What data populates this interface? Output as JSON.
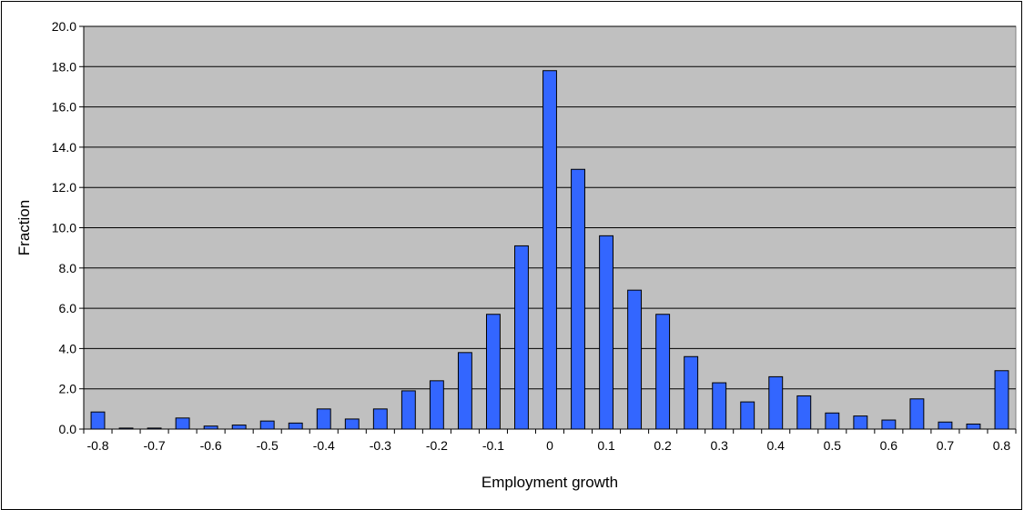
{
  "chart_data": {
    "type": "bar",
    "xlabel": "Employment growth",
    "ylabel": "Fraction",
    "ylim": [
      0,
      20
    ],
    "y_ticks": [
      "0.0",
      "2.0",
      "4.0",
      "6.0",
      "8.0",
      "10.0",
      "12.0",
      "14.0",
      "16.0",
      "18.0",
      "20.0"
    ],
    "x_tick_labels": [
      "-0.8",
      "-0.7",
      "-0.6",
      "-0.5",
      "-0.4",
      "-0.3",
      "-0.2",
      "-0.1",
      "0",
      "0.1",
      "0.2",
      "0.3",
      "0.4",
      "0.5",
      "0.6",
      "0.7",
      "0.8"
    ],
    "categories": [
      -0.8,
      -0.75,
      -0.7,
      -0.65,
      -0.6,
      -0.55,
      -0.5,
      -0.45,
      -0.4,
      -0.35,
      -0.3,
      -0.25,
      -0.2,
      -0.15,
      -0.1,
      -0.05,
      0,
      0.05,
      0.1,
      0.15,
      0.2,
      0.25,
      0.3,
      0.35,
      0.4,
      0.45,
      0.5,
      0.55,
      0.6,
      0.65,
      0.7,
      0.75,
      0.8
    ],
    "values": [
      0.85,
      0.05,
      0.05,
      0.55,
      0.15,
      0.2,
      0.4,
      0.3,
      1.0,
      0.5,
      1.0,
      1.9,
      2.4,
      3.8,
      5.7,
      9.1,
      17.8,
      12.9,
      9.6,
      6.9,
      5.7,
      3.6,
      2.3,
      1.35,
      2.6,
      1.65,
      0.8,
      0.65,
      0.45,
      1.5,
      0.35,
      0.25,
      2.9
    ],
    "grid": true,
    "legend": "none",
    "colors": {
      "bar": "#3366ff",
      "plot_bg": "#c0c0c0",
      "grid": "#000000",
      "bar_stroke": "#000000"
    }
  }
}
